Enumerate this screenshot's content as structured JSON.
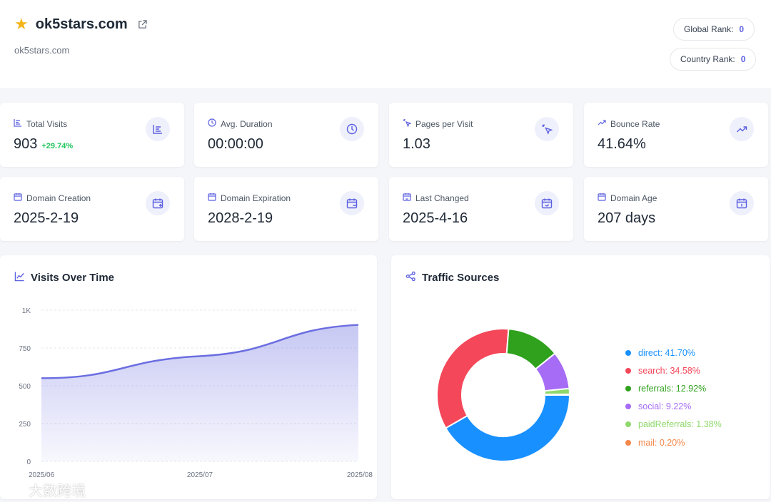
{
  "header": {
    "title": "ok5stars.com",
    "subtitle": "ok5stars.com",
    "global_rank_label": "Global Rank:",
    "global_rank_value": "0",
    "country_rank_label": "Country Rank:",
    "country_rank_value": "0",
    "icons": [
      "star-icon",
      "external-link-icon"
    ]
  },
  "stats": [
    {
      "label": "Total Visits",
      "value": "903",
      "delta": "+29.74%",
      "icon": "bar-list-icon"
    },
    {
      "label": "Avg. Duration",
      "value": "00:00:00",
      "icon": "clock-icon"
    },
    {
      "label": "Pages per Visit",
      "value": "1.03",
      "icon": "cursor-click-icon"
    },
    {
      "label": "Bounce Rate",
      "value": "41.64%",
      "icon": "trending-up-icon"
    },
    {
      "label": "Domain Creation",
      "value": "2025-2-19",
      "icon": "calendar-plus-icon"
    },
    {
      "label": "Domain Expiration",
      "value": "2028-2-19",
      "icon": "calendar-minus-icon"
    },
    {
      "label": "Last Changed",
      "value": "2025-4-16",
      "icon": "calendar-sync-icon"
    },
    {
      "label": "Domain Age",
      "value": "207 days",
      "icon": "calendar-icon"
    }
  ],
  "visits_panel": {
    "title": "Visits Over Time"
  },
  "traffic_panel": {
    "title": "Traffic Sources"
  },
  "watermark": "大数跨境",
  "colors": {
    "accent": "#5b5fe0",
    "positive": "#22c55e"
  },
  "chart_data": [
    {
      "type": "area",
      "x": [
        "2025/06",
        "2025/07",
        "2025/08"
      ],
      "series": [
        {
          "values": [
            550,
            696,
            903
          ]
        }
      ],
      "ylim": [
        0,
        1000
      ],
      "y_ticks": [
        "0",
        "250",
        "500",
        "750",
        "1K"
      ],
      "x_ticks": [
        "2025/06",
        "2025/07",
        "2025/08"
      ],
      "grid": true,
      "color": "#6b6ee0"
    },
    {
      "type": "pie",
      "style": "donut",
      "legend_position": "right",
      "slices": [
        {
          "label": "direct: 41.70%",
          "value": 41.7,
          "color": "#1890ff"
        },
        {
          "label": "search: 34.58%",
          "value": 34.58,
          "color": "#f5475a"
        },
        {
          "label": "referrals: 12.92%",
          "value": 12.92,
          "color": "#2fa11d"
        },
        {
          "label": "social: 9.22%",
          "value": 9.22,
          "color": "#a66cf5"
        },
        {
          "label": "paidReferrals: 1.38%",
          "value": 1.38,
          "color": "#8fd86b"
        },
        {
          "label": "mail: 0.20%",
          "value": 0.2,
          "color": "#f5874a"
        }
      ]
    }
  ]
}
